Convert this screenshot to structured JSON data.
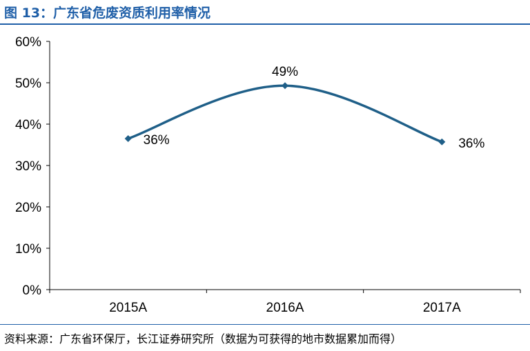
{
  "header": {
    "title": "图 13：广东省危废资质利用率情况"
  },
  "footer": {
    "source": "资料来源：广东省环保厅，长江证券研究所（数据为可获得的地市数据累加而得）"
  },
  "colors": {
    "title": "#1f5fa8",
    "series": "#1f5f88"
  },
  "chart_data": {
    "type": "line",
    "title": "",
    "xlabel": "",
    "ylabel": "",
    "categories": [
      "2015A",
      "2016A",
      "2017A"
    ],
    "series": [
      {
        "values": [
          36.5,
          49.3,
          35.7
        ],
        "labels": [
          "36%",
          "49%",
          "36%"
        ]
      }
    ],
    "ylim": [
      0,
      60
    ],
    "yticks": [
      0,
      10,
      20,
      30,
      40,
      50,
      60
    ],
    "ytick_labels": [
      "0%",
      "10%",
      "20%",
      "30%",
      "40%",
      "50%",
      "60%"
    ],
    "grid": false,
    "smooth": true,
    "marker": "diamond"
  }
}
